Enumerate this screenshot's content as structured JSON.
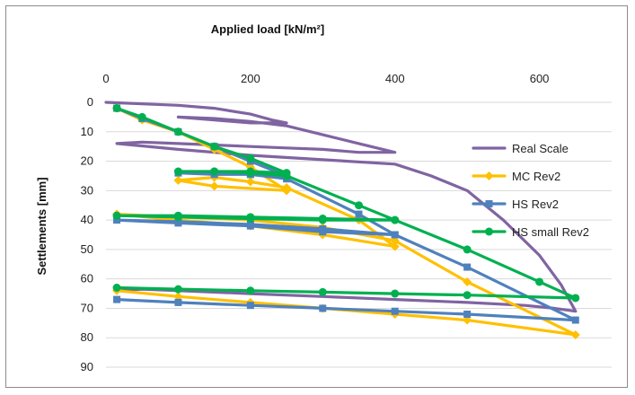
{
  "chart_data": {
    "type": "line",
    "xlabel": "Applied load [kN/m²]",
    "ylabel": "Settlements [mm]",
    "xlim": [
      0,
      700
    ],
    "ylim": [
      0,
      90
    ],
    "x_ticks": [
      0,
      200,
      400,
      600
    ],
    "y_ticks": [
      0,
      10,
      20,
      30,
      40,
      50,
      60,
      70,
      80,
      90
    ],
    "x_axis_position": "top",
    "y_axis_inverted": true,
    "grid": "horizontal",
    "legend_position": "right",
    "series": [
      {
        "name": "Real Scale",
        "color": "#8064a2",
        "marker": "none",
        "points": [
          [
            0,
            0
          ],
          [
            100,
            1
          ],
          [
            150,
            2
          ],
          [
            200,
            4
          ],
          [
            230,
            6
          ],
          [
            250,
            7
          ],
          [
            200,
            7
          ],
          [
            150,
            6
          ],
          [
            100,
            5
          ],
          [
            150,
            5.5
          ],
          [
            200,
            6.5
          ],
          [
            250,
            8
          ],
          [
            300,
            11
          ],
          [
            350,
            14
          ],
          [
            400,
            17
          ],
          [
            350,
            17
          ],
          [
            300,
            16
          ],
          [
            250,
            15.5
          ],
          [
            200,
            15
          ],
          [
            150,
            14.5
          ],
          [
            100,
            14
          ],
          [
            50,
            13.5
          ],
          [
            15,
            14
          ],
          [
            100,
            16
          ],
          [
            200,
            18
          ],
          [
            300,
            19.5
          ],
          [
            400,
            21
          ],
          [
            450,
            25
          ],
          [
            500,
            30
          ],
          [
            550,
            40
          ],
          [
            600,
            52
          ],
          [
            630,
            62
          ],
          [
            650,
            71
          ],
          [
            620,
            70
          ],
          [
            580,
            69
          ],
          [
            500,
            68
          ],
          [
            400,
            67
          ],
          [
            300,
            66
          ],
          [
            200,
            65
          ],
          [
            100,
            64
          ],
          [
            50,
            63.5
          ],
          [
            20,
            64
          ]
        ]
      },
      {
        "name": "MC Rev2",
        "color": "#ffc000",
        "marker": "diamond",
        "points": [
          [
            15,
            2
          ],
          [
            50,
            6
          ],
          [
            100,
            10
          ],
          [
            150,
            16
          ],
          [
            200,
            22
          ],
          [
            250,
            30
          ],
          [
            150,
            28.5
          ],
          [
            100,
            26.5
          ],
          [
            150,
            25.5
          ],
          [
            200,
            27
          ],
          [
            250,
            29
          ],
          [
            350,
            40
          ],
          [
            400,
            49
          ],
          [
            300,
            45
          ],
          [
            200,
            42
          ],
          [
            100,
            40
          ],
          [
            15,
            38
          ],
          [
            100,
            39
          ],
          [
            200,
            40
          ],
          [
            300,
            42.5
          ],
          [
            400,
            47
          ],
          [
            500,
            61
          ],
          [
            650,
            79
          ],
          [
            500,
            74
          ],
          [
            400,
            72
          ],
          [
            300,
            70
          ],
          [
            200,
            68
          ],
          [
            100,
            66
          ],
          [
            15,
            64
          ]
        ]
      },
      {
        "name": "HS Rev2",
        "color": "#4f81bd",
        "marker": "square",
        "points": [
          [
            15,
            2
          ],
          [
            50,
            5.5
          ],
          [
            100,
            10
          ],
          [
            150,
            15
          ],
          [
            200,
            20
          ],
          [
            250,
            25
          ],
          [
            200,
            24.5
          ],
          [
            150,
            24.5
          ],
          [
            100,
            24
          ],
          [
            150,
            24
          ],
          [
            200,
            24.5
          ],
          [
            250,
            26
          ],
          [
            350,
            38
          ],
          [
            400,
            45
          ],
          [
            300,
            44
          ],
          [
            200,
            42
          ],
          [
            100,
            41
          ],
          [
            15,
            40
          ],
          [
            100,
            40.5
          ],
          [
            200,
            41.5
          ],
          [
            300,
            43
          ],
          [
            400,
            45
          ],
          [
            500,
            56
          ],
          [
            650,
            74
          ],
          [
            500,
            72
          ],
          [
            400,
            71
          ],
          [
            300,
            70
          ],
          [
            200,
            69
          ],
          [
            100,
            68
          ],
          [
            15,
            67
          ]
        ]
      },
      {
        "name": "HS small Rev2",
        "color": "#00b050",
        "marker": "circle",
        "points": [
          [
            15,
            2
          ],
          [
            50,
            5
          ],
          [
            100,
            10
          ],
          [
            150,
            15
          ],
          [
            200,
            19
          ],
          [
            250,
            24
          ],
          [
            200,
            23.5
          ],
          [
            150,
            23.5
          ],
          [
            100,
            23.5
          ],
          [
            150,
            23.5
          ],
          [
            200,
            24
          ],
          [
            250,
            25
          ],
          [
            350,
            35
          ],
          [
            400,
            40
          ],
          [
            300,
            40
          ],
          [
            200,
            39.5
          ],
          [
            100,
            39
          ],
          [
            15,
            38.5
          ],
          [
            100,
            38.5
          ],
          [
            200,
            39
          ],
          [
            300,
            39.5
          ],
          [
            400,
            40
          ],
          [
            500,
            50
          ],
          [
            600,
            61
          ],
          [
            650,
            66.5
          ],
          [
            500,
            65.5
          ],
          [
            400,
            65
          ],
          [
            300,
            64.5
          ],
          [
            200,
            64
          ],
          [
            100,
            63.5
          ],
          [
            15,
            63
          ]
        ]
      }
    ]
  }
}
